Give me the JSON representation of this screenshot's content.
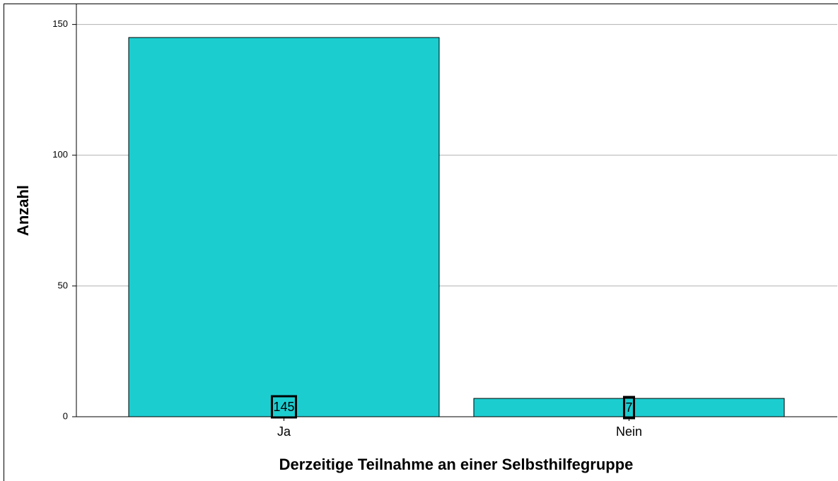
{
  "chart_data": {
    "type": "bar",
    "x_label": "Derzeitige Teilnahme an einer Selbsthilfegruppe",
    "y_label": "Anzahl",
    "categories": [
      "Ja",
      "Nein"
    ],
    "values": [
      145,
      7
    ],
    "color": "#1ccdd0",
    "ylim": [
      0,
      158
    ],
    "yticks": [
      0,
      50,
      100,
      150
    ],
    "grid": true
  }
}
